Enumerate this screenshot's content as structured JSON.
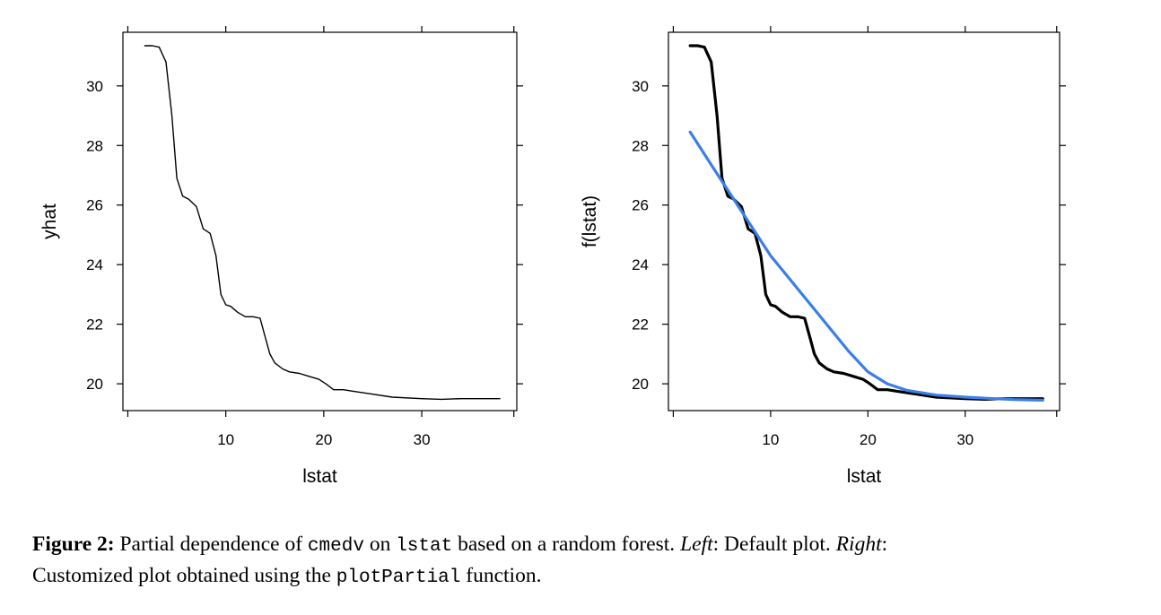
{
  "chart_data": [
    {
      "type": "line",
      "title": "",
      "xlabel": "lstat",
      "ylabel": "yhat",
      "xlim": [
        -0.5,
        39.7
      ],
      "ylim": [
        19.1,
        31.8
      ],
      "xticks": [
        10,
        20,
        30
      ],
      "yticks": [
        20,
        22,
        24,
        26,
        28,
        30
      ],
      "grid": false,
      "series": [
        {
          "color": "#000000",
          "x": [
            1.73,
            2.5,
            3.2,
            3.9,
            4.5,
            5.0,
            5.6,
            6.2,
            7.0,
            7.7,
            8.4,
            9.0,
            9.5,
            10.0,
            10.5,
            11.2,
            12.0,
            12.8,
            13.5,
            14.0,
            14.5,
            15.0,
            15.8,
            16.5,
            17.5,
            18.5,
            19.5,
            20.2,
            21.0,
            22.0,
            23.0,
            25.0,
            27.0,
            30.0,
            32.0,
            34.0,
            36.0,
            37.97
          ],
          "values": [
            31.35,
            31.35,
            31.3,
            30.8,
            29.0,
            26.9,
            26.3,
            26.2,
            25.95,
            25.2,
            25.05,
            24.3,
            23.0,
            22.65,
            22.6,
            22.4,
            22.25,
            22.25,
            22.2,
            21.6,
            21.0,
            20.7,
            20.5,
            20.4,
            20.35,
            20.25,
            20.15,
            20.0,
            19.8,
            19.8,
            19.75,
            19.65,
            19.55,
            19.5,
            19.48,
            19.5,
            19.5,
            19.5
          ]
        }
      ]
    },
    {
      "type": "line",
      "title": "",
      "xlabel": "lstat",
      "ylabel": "f(lstat)",
      "xlim": [
        -0.5,
        39.7
      ],
      "ylim": [
        19.1,
        31.8
      ],
      "xticks": [
        10,
        20,
        30
      ],
      "yticks": [
        20,
        22,
        24,
        26,
        28,
        30
      ],
      "grid": false,
      "series": [
        {
          "color": "#000000",
          "x": [
            1.73,
            2.5,
            3.2,
            3.9,
            4.5,
            5.0,
            5.6,
            6.2,
            7.0,
            7.7,
            8.4,
            9.0,
            9.5,
            10.0,
            10.5,
            11.2,
            12.0,
            12.8,
            13.5,
            14.0,
            14.5,
            15.0,
            15.8,
            16.5,
            17.5,
            18.5,
            19.5,
            20.2,
            21.0,
            22.0,
            23.0,
            25.0,
            27.0,
            30.0,
            32.0,
            34.0,
            36.0,
            37.97
          ],
          "values": [
            31.35,
            31.35,
            31.3,
            30.8,
            29.0,
            26.9,
            26.3,
            26.2,
            25.95,
            25.2,
            25.05,
            24.3,
            23.0,
            22.65,
            22.6,
            22.4,
            22.25,
            22.25,
            22.2,
            21.6,
            21.0,
            20.7,
            20.5,
            20.4,
            20.35,
            20.25,
            20.15,
            20.0,
            19.8,
            19.8,
            19.75,
            19.65,
            19.55,
            19.5,
            19.48,
            19.5,
            19.5,
            19.5
          ]
        },
        {
          "color": "#3b7fe6",
          "x": [
            1.73,
            4.0,
            6.0,
            8.0,
            10.0,
            12.0,
            14.0,
            16.0,
            18.0,
            20.0,
            22.0,
            24.0,
            27.0,
            30.0,
            33.0,
            35.0,
            37.97
          ],
          "values": [
            28.45,
            27.3,
            26.3,
            25.3,
            24.3,
            23.5,
            22.7,
            21.9,
            21.1,
            20.4,
            20.0,
            19.78,
            19.62,
            19.55,
            19.5,
            19.47,
            19.45
          ]
        }
      ]
    }
  ],
  "caption": {
    "label": "Figure 2:",
    "text_1": " Partial dependence of ",
    "code_1": "cmedv",
    "text_2": " on ",
    "code_2": "lstat",
    "text_3": " based on a random forest. ",
    "left_word": "Left",
    "text_4": ": Default plot. ",
    "right_word": "Right",
    "text_5": ":",
    "text_6": "Customized plot obtained using the ",
    "code_3": "plotPartial",
    "text_7": " function."
  }
}
